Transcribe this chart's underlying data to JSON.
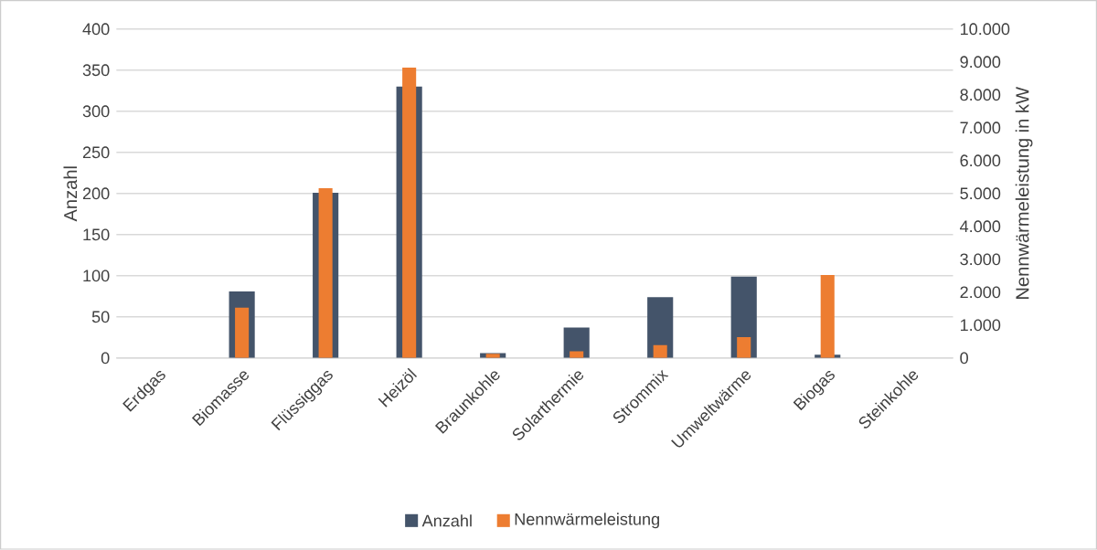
{
  "chart_data": {
    "type": "bar",
    "ylabel": "Anzahl",
    "y2label": "Nennwärmeleistung in kW",
    "categories": [
      "Erdgas",
      "Biomasse",
      "Flüssiggas",
      "Heizöl",
      "Braunkohle",
      "Solarthermie",
      "Strommix",
      "Umweltwärme",
      "Biogas",
      "Steinkohle"
    ],
    "series": [
      {
        "name": "Anzahl",
        "color": "#44546a",
        "values": [
          0,
          81,
          201,
          330,
          6,
          37,
          74,
          99,
          4,
          0
        ]
      },
      {
        "name": "Nennwärmeleistung",
        "color": "#ed7d31",
        "axis": "y2",
        "values": [
          0,
          1530,
          5160,
          8830,
          130,
          200,
          390,
          630,
          2520,
          0
        ]
      }
    ],
    "ylim": [
      0,
      400
    ],
    "yticks": [
      0,
      50,
      100,
      150,
      200,
      250,
      300,
      350,
      400
    ],
    "y2lim": [
      0,
      10000
    ],
    "y2ticks": [
      0,
      {
        "value": 1000,
        "label": "1.000"
      },
      {
        "value": 2000,
        "label": "2.000"
      },
      {
        "value": 3000,
        "label": "3.000"
      },
      {
        "value": 4000,
        "label": "4.000"
      },
      {
        "value": 5000,
        "label": "5.000"
      },
      {
        "value": 6000,
        "label": "6.000"
      },
      {
        "value": 7000,
        "label": "7.000"
      },
      {
        "value": 8000,
        "label": "8.000"
      },
      {
        "value": 9000,
        "label": "9.000"
      },
      {
        "value": 10000,
        "label": "10.000"
      }
    ],
    "grid": "y",
    "legend": "bottom"
  }
}
